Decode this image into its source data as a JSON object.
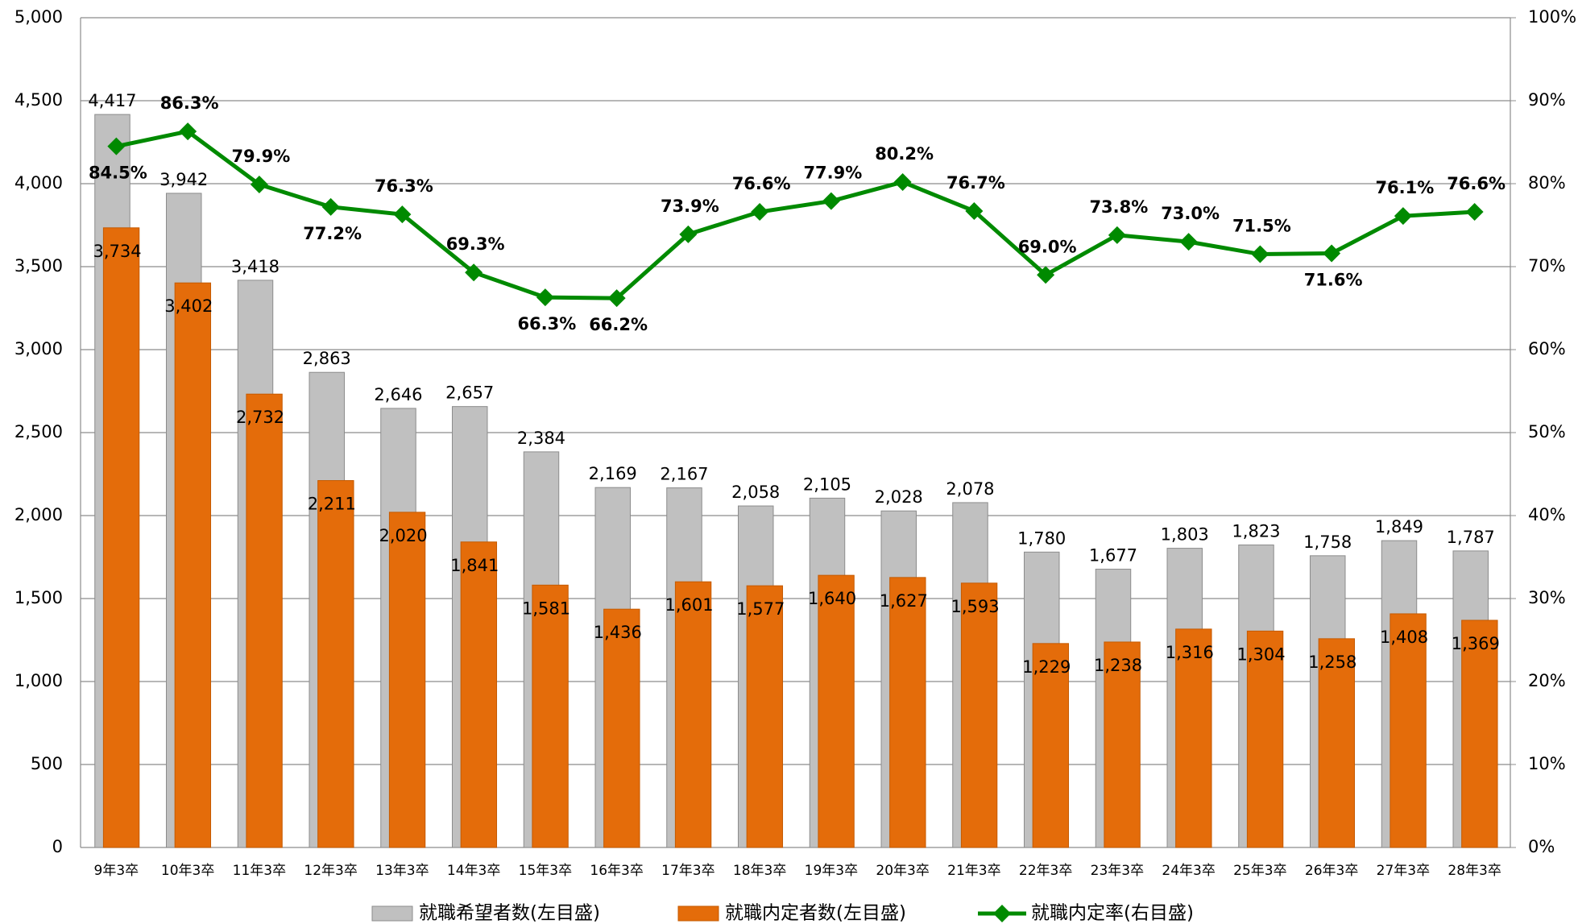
{
  "chart_data": {
    "type": "bar-line",
    "categories": [
      "9年3卒",
      "10年3卒",
      "11年3卒",
      "12年3卒",
      "13年3卒",
      "14年3卒",
      "15年3卒",
      "16年3卒",
      "17年3卒",
      "18年3卒",
      "19年3卒",
      "20年3卒",
      "21年3卒",
      "22年3卒",
      "23年3卒",
      "24年3卒",
      "25年3卒",
      "26年3卒",
      "27年3卒",
      "28年3卒"
    ],
    "series": [
      {
        "name": "就職希望者数(左目盛)",
        "type": "bar",
        "color": "#c0c0c0",
        "values": [
          4417,
          3942,
          3418,
          2863,
          2646,
          2657,
          2384,
          2169,
          2167,
          2058,
          2105,
          2028,
          2078,
          1780,
          1677,
          1803,
          1823,
          1758,
          1849,
          1787
        ],
        "value_labels": [
          "4,417",
          "3,942",
          "3,418",
          "2,863",
          "2,646",
          "2,657",
          "2,384",
          "2,169",
          "2,167",
          "2,058",
          "2,105",
          "2,028",
          "2,078",
          "1,780",
          "1,677",
          "1,803",
          "1,823",
          "1,758",
          "1,849",
          "1,787"
        ]
      },
      {
        "name": "就職内定者数(左目盛)",
        "type": "bar",
        "color": "#e46c0a",
        "values": [
          3734,
          3402,
          2732,
          2211,
          2020,
          1841,
          1581,
          1436,
          1601,
          1577,
          1640,
          1627,
          1593,
          1229,
          1238,
          1316,
          1304,
          1258,
          1408,
          1369
        ],
        "value_labels": [
          "3,734",
          "3,402",
          "2,732",
          "2,211",
          "2,020",
          "1,841",
          "1,581",
          "1,436",
          "1,601",
          "1,577",
          "1,640",
          "1,627",
          "1,593",
          "1,229",
          "1,238",
          "1,316",
          "1,304",
          "1,258",
          "1,408",
          "1,369"
        ]
      },
      {
        "name": "就職内定率(右目盛)",
        "type": "line",
        "axis": "y2",
        "color": "#008a00",
        "values": [
          84.5,
          86.3,
          79.9,
          77.2,
          76.3,
          69.3,
          66.3,
          66.2,
          73.9,
          76.6,
          77.9,
          80.2,
          76.7,
          69.0,
          73.8,
          73.0,
          71.5,
          71.6,
          76.1,
          76.6
        ],
        "value_labels": [
          "84.5%",
          "86.3%",
          "79.9%",
          "77.2%",
          "76.3%",
          "69.3%",
          "66.3%",
          "66.2%",
          "73.9%",
          "76.6%",
          "77.9%",
          "80.2%",
          "76.7%",
          "69.0%",
          "73.8%",
          "73.0%",
          "71.5%",
          "71.6%",
          "76.1%",
          "76.6%"
        ]
      }
    ],
    "ylim": [
      0,
      5000
    ],
    "yticks": [
      0,
      500,
      {
        "value": 1000,
        "label": "1,000"
      },
      {
        "value": 1500,
        "label": "1,500"
      },
      {
        "value": 2000,
        "label": "2,000"
      },
      {
        "value": 2500,
        "label": "2,500"
      },
      {
        "value": 3000,
        "label": "3,000"
      },
      {
        "value": 3500,
        "label": "3,500"
      },
      {
        "value": 4000,
        "label": "4,000"
      },
      {
        "value": 4500,
        "label": "4,500"
      },
      {
        "value": 5000,
        "label": "5,000"
      }
    ],
    "y2lim": [
      0,
      100
    ],
    "y2ticks": [
      {
        "value": 0,
        "label": "0%"
      },
      {
        "value": 10,
        "label": "10%"
      },
      {
        "value": 20,
        "label": "20%"
      },
      {
        "value": 30,
        "label": "30%"
      },
      {
        "value": 40,
        "label": "40%"
      },
      {
        "value": 50,
        "label": "50%"
      },
      {
        "value": 60,
        "label": "60%"
      },
      {
        "value": 70,
        "label": "70%"
      },
      {
        "value": 80,
        "label": "80%"
      },
      {
        "value": 90,
        "label": "90%"
      },
      {
        "value": 100,
        "label": "100%"
      }
    ],
    "grid": true,
    "legend": "bottom"
  }
}
